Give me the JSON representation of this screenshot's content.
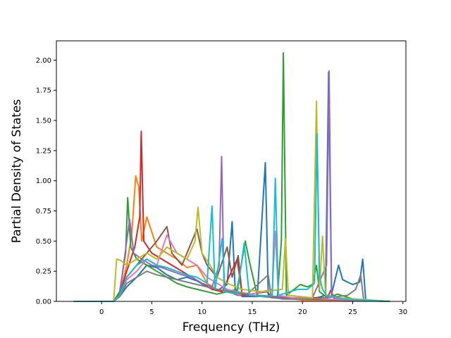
{
  "chart_data": {
    "type": "line",
    "title": "",
    "xlabel": "Frequency (THz)",
    "ylabel": "Partial Density of States",
    "xlim": [
      -4.5,
      30.3
    ],
    "ylim": [
      0.0,
      2.16
    ],
    "xticks": [
      0,
      5,
      10,
      15,
      20,
      25,
      30
    ],
    "yticks": [
      0.0,
      0.25,
      0.5,
      0.75,
      1.0,
      1.25,
      1.5,
      1.75,
      2.0
    ],
    "xtick_labels": [
      "0",
      "5",
      "10",
      "15",
      "20",
      "25",
      "30"
    ],
    "ytick_labels": [
      "0.00",
      "0.25",
      "0.50",
      "0.75",
      "1.00",
      "1.25",
      "1.50",
      "1.75",
      "2.00"
    ],
    "grid": false,
    "legend": "none",
    "series": [
      {
        "color": "#1f77b4",
        "points": [
          [
            -2.8,
            0
          ],
          [
            1.2,
            0
          ],
          [
            1.8,
            0.04
          ],
          [
            2.5,
            0.12
          ],
          [
            3.5,
            0.2
          ],
          [
            4.5,
            0.3
          ],
          [
            5.5,
            0.28
          ],
          [
            6.5,
            0.22
          ],
          [
            7.5,
            0.18
          ],
          [
            8.5,
            0.2
          ],
          [
            9.5,
            0.17
          ],
          [
            10.5,
            0.12
          ],
          [
            11.5,
            0.09
          ],
          [
            12.5,
            0.14
          ],
          [
            13.0,
            0.66
          ],
          [
            13.3,
            0.1
          ],
          [
            14.0,
            0.04
          ],
          [
            15.5,
            0.04
          ],
          [
            16.3,
            1.15
          ],
          [
            16.6,
            0.05
          ],
          [
            18.0,
            0.02
          ],
          [
            20.0,
            0.02
          ],
          [
            21.0,
            0.02
          ],
          [
            22.3,
            0.05
          ],
          [
            22.6,
            1.9
          ],
          [
            22.9,
            0.06
          ],
          [
            23.6,
            0.3
          ],
          [
            24.0,
            0.18
          ],
          [
            25.0,
            0.14
          ],
          [
            25.7,
            0.16
          ],
          [
            26.0,
            0.35
          ],
          [
            26.3,
            0.01
          ],
          [
            28.7,
            0
          ]
        ]
      },
      {
        "color": "#ff7f0e",
        "points": [
          [
            -2.8,
            0
          ],
          [
            1.2,
            0
          ],
          [
            1.8,
            0.05
          ],
          [
            2.5,
            0.3
          ],
          [
            3.0,
            0.55
          ],
          [
            3.4,
            1.04
          ],
          [
            3.7,
            0.95
          ],
          [
            4.0,
            0.5
          ],
          [
            4.5,
            0.7
          ],
          [
            5.5,
            0.45
          ],
          [
            6.5,
            0.4
          ],
          [
            7.5,
            0.35
          ],
          [
            8.5,
            0.28
          ],
          [
            9.5,
            0.3
          ],
          [
            10.5,
            0.15
          ],
          [
            11.5,
            0.1
          ],
          [
            12.5,
            0.08
          ],
          [
            14.0,
            0.06
          ],
          [
            16.0,
            0.04
          ],
          [
            18.0,
            0.03
          ],
          [
            20.0,
            0.01
          ],
          [
            22.0,
            0.01
          ],
          [
            24.0,
            0.01
          ],
          [
            28.7,
            0
          ]
        ]
      },
      {
        "color": "#2ca02c",
        "points": [
          [
            -2.8,
            0
          ],
          [
            1.2,
            0
          ],
          [
            1.8,
            0.08
          ],
          [
            2.4,
            0.4
          ],
          [
            2.6,
            0.86
          ],
          [
            2.9,
            0.45
          ],
          [
            3.5,
            0.35
          ],
          [
            4.5,
            0.3
          ],
          [
            5.5,
            0.25
          ],
          [
            6.5,
            0.2
          ],
          [
            7.5,
            0.15
          ],
          [
            8.5,
            0.12
          ],
          [
            9.5,
            0.1
          ],
          [
            10.5,
            0.08
          ],
          [
            11.5,
            0.06
          ],
          [
            13.5,
            0.1
          ],
          [
            14.3,
            0.5
          ],
          [
            14.8,
            0.3
          ],
          [
            15.5,
            0.05
          ],
          [
            17.5,
            0.04
          ],
          [
            17.9,
            0.5
          ],
          [
            18.1,
            2.06
          ],
          [
            18.4,
            0.05
          ],
          [
            19.8,
            0.14
          ],
          [
            20.5,
            0.12
          ],
          [
            21.0,
            0.14
          ],
          [
            21.4,
            0.3
          ],
          [
            21.7,
            0.08
          ],
          [
            22.5,
            0.03
          ],
          [
            23.5,
            0.06
          ],
          [
            25.0,
            0.02
          ],
          [
            28.7,
            0
          ]
        ]
      },
      {
        "color": "#d62728",
        "points": [
          [
            -2.8,
            0
          ],
          [
            1.2,
            0
          ],
          [
            1.8,
            0.06
          ],
          [
            2.5,
            0.25
          ],
          [
            3.3,
            0.45
          ],
          [
            3.8,
            0.7
          ],
          [
            3.95,
            1.41
          ],
          [
            4.2,
            0.5
          ],
          [
            5.0,
            0.4
          ],
          [
            6.0,
            0.35
          ],
          [
            7.0,
            0.3
          ],
          [
            8.0,
            0.25
          ],
          [
            9.0,
            0.2
          ],
          [
            10.0,
            0.15
          ],
          [
            11.0,
            0.1
          ],
          [
            12.0,
            0.08
          ],
          [
            13.5,
            0.35
          ],
          [
            14.0,
            0.05
          ],
          [
            16.0,
            0.04
          ],
          [
            18.0,
            0.03
          ],
          [
            22.5,
            0.03
          ],
          [
            22.8,
            0.09
          ],
          [
            23.2,
            0.02
          ],
          [
            28.7,
            0
          ]
        ]
      },
      {
        "color": "#9467bd",
        "points": [
          [
            -2.8,
            0
          ],
          [
            1.2,
            0
          ],
          [
            1.8,
            0.05
          ],
          [
            2.5,
            0.5
          ],
          [
            2.8,
            0.68
          ],
          [
            3.2,
            0.4
          ],
          [
            4.0,
            0.35
          ],
          [
            5.0,
            0.3
          ],
          [
            6.0,
            0.28
          ],
          [
            7.0,
            0.25
          ],
          [
            8.0,
            0.22
          ],
          [
            9.0,
            0.2
          ],
          [
            10.0,
            0.15
          ],
          [
            11.0,
            0.12
          ],
          [
            11.7,
            0.3
          ],
          [
            11.95,
            1.2
          ],
          [
            12.2,
            0.1
          ],
          [
            13.5,
            0.05
          ],
          [
            15.0,
            0.05
          ],
          [
            17.0,
            0.04
          ],
          [
            19.0,
            0.03
          ],
          [
            21.0,
            0.03
          ],
          [
            22.4,
            0.3
          ],
          [
            22.65,
            1.91
          ],
          [
            22.9,
            0.05
          ],
          [
            24.0,
            0.02
          ],
          [
            28.7,
            0
          ]
        ]
      },
      {
        "color": "#8c564b",
        "points": [
          [
            -2.8,
            0
          ],
          [
            1.2,
            0
          ],
          [
            1.8,
            0.06
          ],
          [
            2.5,
            0.2
          ],
          [
            3.5,
            0.3
          ],
          [
            4.5,
            0.4
          ],
          [
            5.5,
            0.5
          ],
          [
            6.5,
            0.62
          ],
          [
            7.0,
            0.4
          ],
          [
            8.0,
            0.3
          ],
          [
            9.0,
            0.5
          ],
          [
            9.5,
            0.6
          ],
          [
            10.0,
            0.4
          ],
          [
            10.5,
            0.3
          ],
          [
            11.5,
            0.2
          ],
          [
            12.5,
            0.45
          ],
          [
            13.0,
            0.2
          ],
          [
            13.6,
            0.38
          ],
          [
            14.0,
            0.05
          ],
          [
            16.5,
            0.08
          ],
          [
            17.0,
            0.03
          ],
          [
            20.0,
            0.02
          ],
          [
            28.7,
            0
          ]
        ]
      },
      {
        "color": "#e377c2",
        "points": [
          [
            -2.8,
            0
          ],
          [
            1.2,
            0
          ],
          [
            1.8,
            0.05
          ],
          [
            2.5,
            0.18
          ],
          [
            3.5,
            0.25
          ],
          [
            4.5,
            0.35
          ],
          [
            5.5,
            0.3
          ],
          [
            6.5,
            0.55
          ],
          [
            7.5,
            0.4
          ],
          [
            8.5,
            0.35
          ],
          [
            9.5,
            0.3
          ],
          [
            10.5,
            0.2
          ],
          [
            11.5,
            0.15
          ],
          [
            12.5,
            0.1
          ],
          [
            13.5,
            0.08
          ],
          [
            15.0,
            0.06
          ],
          [
            17.0,
            0.1
          ],
          [
            17.3,
            0.58
          ],
          [
            17.6,
            0.05
          ],
          [
            19.0,
            0.03
          ],
          [
            28.7,
            0
          ]
        ]
      },
      {
        "color": "#7f7f7f",
        "points": [
          [
            -2.8,
            0
          ],
          [
            1.2,
            0
          ],
          [
            1.8,
            0.04
          ],
          [
            2.5,
            0.15
          ],
          [
            3.5,
            0.2
          ],
          [
            4.5,
            0.25
          ],
          [
            5.5,
            0.22
          ],
          [
            6.5,
            0.2
          ],
          [
            7.5,
            0.18
          ],
          [
            8.5,
            0.16
          ],
          [
            9.5,
            0.14
          ],
          [
            10.5,
            0.12
          ],
          [
            11.5,
            0.1
          ],
          [
            13.0,
            0.08
          ],
          [
            14.5,
            0.06
          ],
          [
            16.6,
            0.22
          ],
          [
            16.9,
            0.03
          ],
          [
            18.5,
            0.02
          ],
          [
            21.0,
            0.02
          ],
          [
            23.5,
            0.04
          ],
          [
            24.5,
            0.05
          ],
          [
            25.3,
            0.1
          ],
          [
            25.8,
            0.22
          ],
          [
            26.1,
            0.01
          ],
          [
            28.7,
            0
          ]
        ]
      },
      {
        "color": "#bcbd22",
        "points": [
          [
            -2.8,
            0
          ],
          [
            1.2,
            0
          ],
          [
            1.5,
            0.35
          ],
          [
            1.9,
            0.34
          ],
          [
            2.5,
            0.3
          ],
          [
            3.5,
            0.35
          ],
          [
            4.5,
            0.4
          ],
          [
            5.5,
            0.35
          ],
          [
            6.5,
            0.45
          ],
          [
            7.5,
            0.4
          ],
          [
            8.5,
            0.35
          ],
          [
            9.3,
            0.5
          ],
          [
            9.6,
            0.78
          ],
          [
            10.0,
            0.4
          ],
          [
            10.8,
            0.3
          ],
          [
            11.5,
            0.2
          ],
          [
            12.5,
            0.15
          ],
          [
            14.0,
            0.1
          ],
          [
            16.0,
            0.08
          ],
          [
            18.0,
            0.1
          ],
          [
            18.3,
            0.52
          ],
          [
            18.6,
            0.05
          ],
          [
            21.0,
            0.03
          ],
          [
            21.4,
            1.66
          ],
          [
            21.7,
            0.1
          ],
          [
            22.0,
            0.54
          ],
          [
            22.3,
            0.05
          ],
          [
            23.5,
            0.03
          ],
          [
            28.7,
            0
          ]
        ]
      },
      {
        "color": "#17becf",
        "points": [
          [
            -2.8,
            0
          ],
          [
            1.2,
            0
          ],
          [
            1.8,
            0.05
          ],
          [
            2.5,
            0.2
          ],
          [
            3.5,
            0.3
          ],
          [
            4.5,
            0.35
          ],
          [
            5.5,
            0.3
          ],
          [
            6.5,
            0.28
          ],
          [
            7.5,
            0.25
          ],
          [
            8.5,
            0.22
          ],
          [
            9.5,
            0.2
          ],
          [
            10.5,
            0.15
          ],
          [
            11.0,
            0.79
          ],
          [
            11.3,
            0.1
          ],
          [
            12.0,
            0.52
          ],
          [
            12.3,
            0.08
          ],
          [
            13.5,
            0.06
          ],
          [
            14.2,
            0.48
          ],
          [
            14.7,
            0.05
          ],
          [
            16.0,
            0.04
          ],
          [
            17.0,
            0.05
          ],
          [
            17.3,
            1.02
          ],
          [
            17.6,
            0.05
          ],
          [
            19.5,
            0.1
          ],
          [
            20.5,
            0.1
          ],
          [
            21.2,
            0.15
          ],
          [
            21.45,
            1.39
          ],
          [
            21.7,
            0.2
          ],
          [
            22.0,
            0.1
          ],
          [
            22.4,
            0.05
          ],
          [
            24.0,
            0.02
          ],
          [
            28.7,
            0
          ]
        ]
      }
    ]
  }
}
